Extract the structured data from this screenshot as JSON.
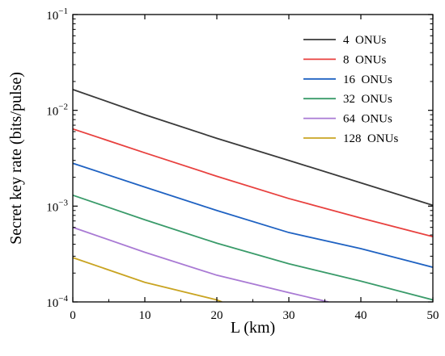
{
  "chart_data": {
    "type": "line",
    "title": "",
    "xlabel": "L (km)",
    "ylabel": "Secret key rate (bits/pulse)",
    "xlim": [
      0,
      50
    ],
    "ylim": [
      0.0001,
      0.1
    ],
    "yscale": "log",
    "x_ticks": [
      0,
      10,
      20,
      30,
      40,
      50
    ],
    "x_tick_labels": [
      "0",
      "10",
      "20",
      "30",
      "40",
      "50"
    ],
    "y_ticks": [
      0.0001,
      0.001,
      0.01,
      0.1
    ],
    "y_tick_labels": [
      {
        "base": "10",
        "exp": "−4"
      },
      {
        "base": "10",
        "exp": "−3"
      },
      {
        "base": "10",
        "exp": "−2"
      },
      {
        "base": "10",
        "exp": "−1"
      }
    ],
    "grid": false,
    "legend_position": "top-right",
    "series": [
      {
        "name": "4  ONUs",
        "color": "#3a3a3a",
        "x": [
          0,
          10,
          20,
          30,
          40,
          50
        ],
        "y": [
          0.0165,
          0.009,
          0.0051,
          0.003,
          0.00175,
          0.00102
        ]
      },
      {
        "name": "8  ONUs",
        "color": "#e8413f",
        "x": [
          0,
          10,
          20,
          30,
          40,
          50
        ],
        "y": [
          0.0064,
          0.0036,
          0.00205,
          0.0012,
          0.00075,
          0.00048
        ]
      },
      {
        "name": "16  ONUs",
        "color": "#1f62c2",
        "x": [
          0,
          10,
          20,
          30,
          40,
          50
        ],
        "y": [
          0.0028,
          0.00158,
          0.0009,
          0.00053,
          0.00036,
          0.00023
        ]
      },
      {
        "name": "32  ONUs",
        "color": "#3a9b6a",
        "x": [
          0,
          10,
          20,
          30,
          40,
          50
        ],
        "y": [
          0.0013,
          0.00072,
          0.00041,
          0.00025,
          0.000165,
          0.000105
        ]
      },
      {
        "name": "64  ONUs",
        "color": "#a97ad4",
        "x": [
          0,
          10,
          20,
          30,
          35.5
        ],
        "y": [
          0.0006,
          0.00033,
          0.00019,
          0.000125,
          0.0001
        ]
      },
      {
        "name": "128  ONUs",
        "color": "#c9a422",
        "x": [
          0,
          10,
          20,
          20.7
        ],
        "y": [
          0.00029,
          0.00016,
          0.000105,
          0.0001
        ]
      }
    ]
  }
}
